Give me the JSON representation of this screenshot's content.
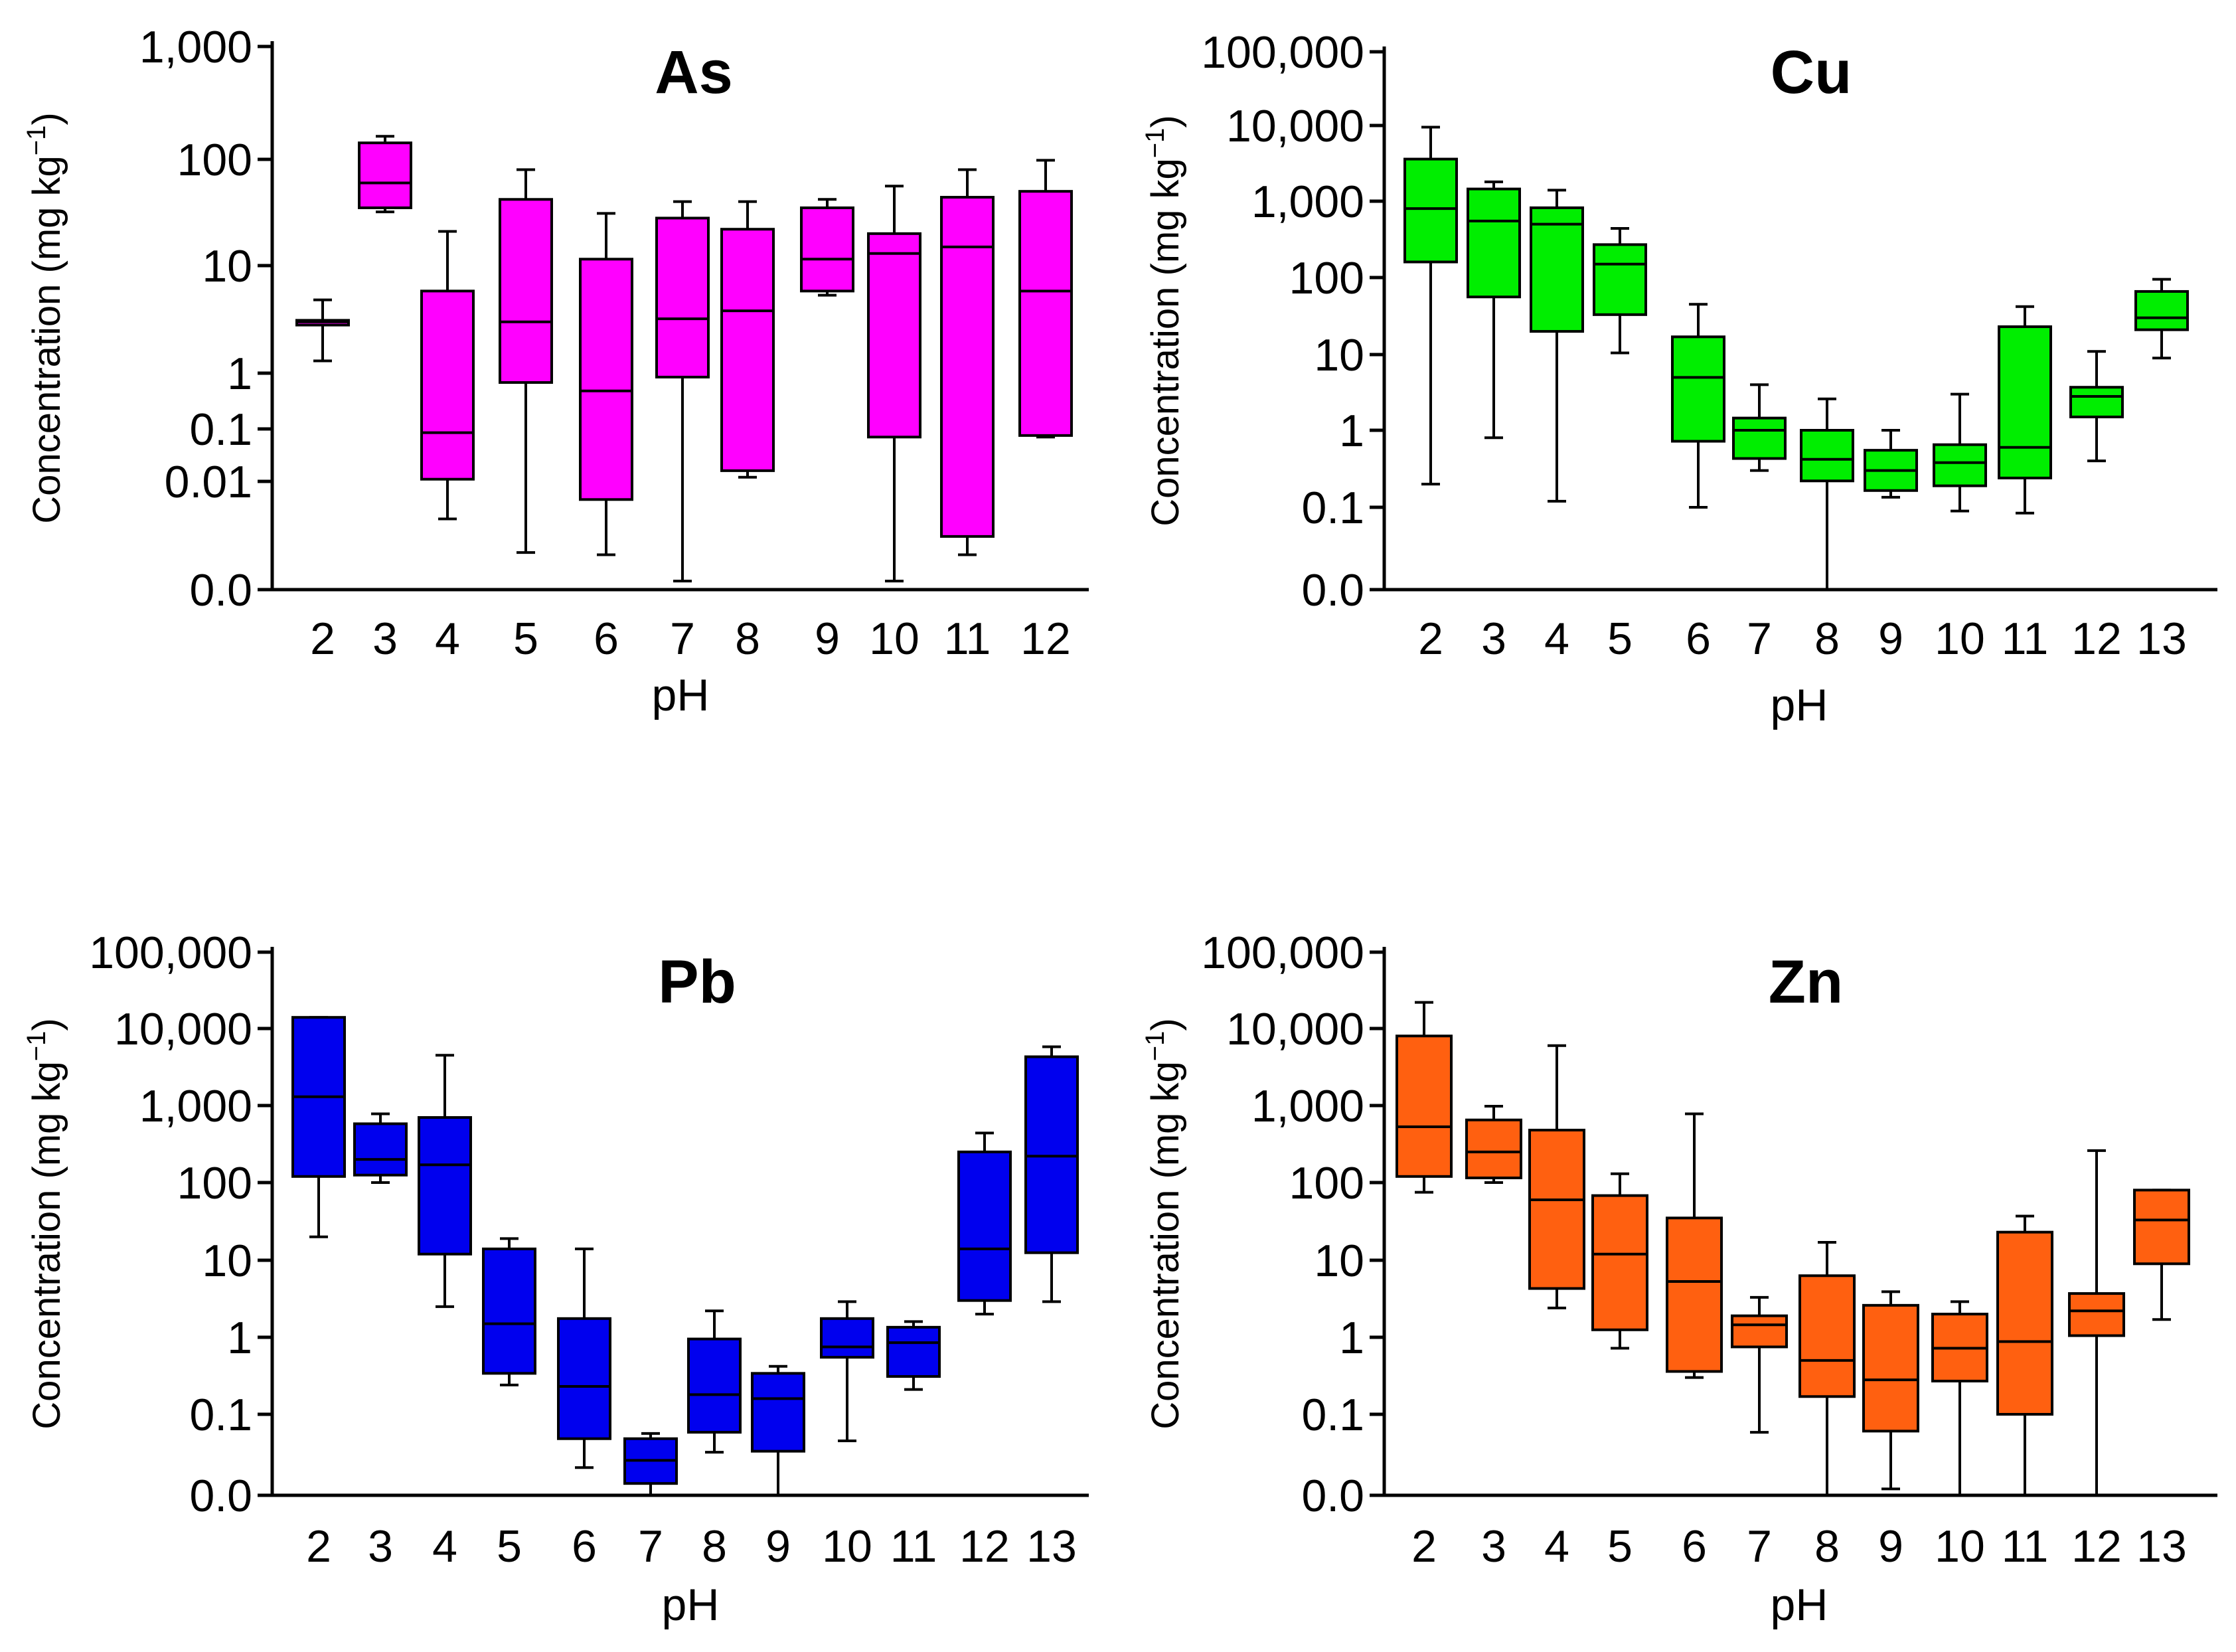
{
  "figure": {
    "ylabel_main": "Concentration (mg kg",
    "ylabel_sup": "−1",
    "ylabel_close": ")",
    "xlabel": "pH"
  },
  "chart_data": [
    {
      "type": "box",
      "title": "As",
      "xlabel": "pH",
      "ylabel": "Concentration (mg kg−1)",
      "color": "#ff00ff",
      "yticks": [
        {
          "label": "1,000",
          "value": 1000
        },
        {
          "label": "100",
          "value": 100
        },
        {
          "label": "10",
          "value": 10
        },
        {
          "label": "1",
          "value": 1
        },
        {
          "label": "0.1",
          "value": 0.1
        },
        {
          "label": "0.01",
          "value": 0.01
        },
        {
          "label": "0.0",
          "value": 0.0
        }
      ],
      "categories": [
        "2",
        "3",
        "4",
        "5",
        "6",
        "7",
        "8",
        "9",
        "10",
        "11",
        "12"
      ],
      "boxes": [
        {
          "min": 1.3,
          "q1": 2.8,
          "median": 3.0,
          "q3": 3.1,
          "max": 4.8
        },
        {
          "min": 32,
          "q1": 35,
          "median": 60,
          "q3": 140,
          "max": 160
        },
        {
          "min": 0.0045,
          "q1": 0.011,
          "median": 0.085,
          "q3": 5.8,
          "max": 21
        },
        {
          "min": 0.0022,
          "q1": 0.68,
          "median": 3.0,
          "q3": 42,
          "max": 80
        },
        {
          "min": 0.0021,
          "q1": 0.0068,
          "median": 0.48,
          "q3": 11.5,
          "max": 31
        },
        {
          "min": 0.0012,
          "q1": 0.85,
          "median": 3.2,
          "q3": 28,
          "max": 40
        },
        {
          "min": 0.012,
          "q1": 0.016,
          "median": 3.8,
          "q3": 22,
          "max": 40
        },
        {
          "min": 5.3,
          "q1": 5.8,
          "median": 11.5,
          "q3": 35,
          "max": 42
        },
        {
          "min": 0.0012,
          "q1": 0.07,
          "median": 13,
          "q3": 20,
          "max": 56
        },
        {
          "min": 0.0021,
          "q1": 0.0031,
          "median": 15,
          "q3": 44,
          "max": 80
        },
        {
          "min": 0.07,
          "q1": 0.075,
          "median": 5.8,
          "q3": 50,
          "max": 98
        }
      ]
    },
    {
      "type": "box",
      "title": "Cu",
      "xlabel": "pH",
      "ylabel": "Concentration (mg kg−1)",
      "color": "#00ee00",
      "yticks": [
        {
          "label": "100,000",
          "value": 100000
        },
        {
          "label": "10,000",
          "value": 10000
        },
        {
          "label": "1,000",
          "value": 1000
        },
        {
          "label": "100",
          "value": 100
        },
        {
          "label": "10",
          "value": 10
        },
        {
          "label": "1",
          "value": 1
        },
        {
          "label": "0.1",
          "value": 0.1
        },
        {
          "label": "0.0",
          "value": 0.0
        }
      ],
      "categories": [
        "2",
        "3",
        "4",
        "5",
        "6",
        "7",
        "8",
        "9",
        "10",
        "11",
        "12",
        "13"
      ],
      "boxes": [
        {
          "min": 0.2,
          "q1": 160,
          "median": 800,
          "q3": 3600,
          "max": 9500
        },
        {
          "min": 0.8,
          "q1": 56,
          "median": 550,
          "q3": 1450,
          "max": 1800
        },
        {
          "min": 0.12,
          "q1": 20,
          "median": 500,
          "q3": 820,
          "max": 1400
        },
        {
          "min": 10.5,
          "q1": 33,
          "median": 150,
          "q3": 270,
          "max": 440
        },
        {
          "min": 0.1,
          "q1": 0.72,
          "median": 5.0,
          "q3": 17,
          "max": 45
        },
        {
          "min": 0.3,
          "q1": 0.43,
          "median": 1.0,
          "q3": 1.45,
          "max": 4.0
        },
        {
          "min": 0.0,
          "q1": 0.22,
          "median": 0.42,
          "q3": 1.0,
          "max": 2.6
        },
        {
          "min": 0.135,
          "q1": 0.165,
          "median": 0.3,
          "q3": 0.55,
          "max": 1.0
        },
        {
          "min": 0.09,
          "q1": 0.19,
          "median": 0.38,
          "q3": 0.65,
          "max": 3.0
        },
        {
          "min": 0.085,
          "q1": 0.24,
          "median": 0.6,
          "q3": 23,
          "max": 42
        },
        {
          "min": 0.4,
          "q1": 1.5,
          "median": 2.8,
          "q3": 3.7,
          "max": 11
        },
        {
          "min": 9,
          "q1": 21,
          "median": 30,
          "q3": 66,
          "max": 95
        }
      ]
    },
    {
      "type": "box",
      "title": "Pb",
      "xlabel": "pH",
      "ylabel": "Concentration (mg kg−1)",
      "color": "#0000ee",
      "yticks": [
        {
          "label": "100,000",
          "value": 100000
        },
        {
          "label": "10,000",
          "value": 10000
        },
        {
          "label": "1,000",
          "value": 1000
        },
        {
          "label": "100",
          "value": 100
        },
        {
          "label": "10",
          "value": 10
        },
        {
          "label": "1",
          "value": 1
        },
        {
          "label": "0.1",
          "value": 0.1
        },
        {
          "label": "0.0",
          "value": 0.0
        }
      ],
      "categories": [
        "2",
        "3",
        "4",
        "5",
        "6",
        "7",
        "8",
        "9",
        "10",
        "11",
        "12",
        "13"
      ],
      "boxes": [
        {
          "min": 20,
          "q1": 120,
          "median": 1300,
          "q3": 14000,
          "max": 14000
        },
        {
          "min": 100,
          "q1": 125,
          "median": 200,
          "q3": 580,
          "max": 780
        },
        {
          "min": 2.5,
          "q1": 12,
          "median": 170,
          "q3": 700,
          "max": 4500
        },
        {
          "min": 0.24,
          "q1": 0.34,
          "median": 1.5,
          "q3": 14,
          "max": 19
        },
        {
          "min": 0.022,
          "q1": 0.05,
          "median": 0.23,
          "q3": 1.75,
          "max": 14
        },
        {
          "min": 0.009,
          "q1": 0.014,
          "median": 0.027,
          "q3": 0.05,
          "max": 0.058
        },
        {
          "min": 0.034,
          "q1": 0.06,
          "median": 0.18,
          "q3": 0.95,
          "max": 2.2
        },
        {
          "min": 0.009,
          "q1": 0.035,
          "median": 0.16,
          "q3": 0.34,
          "max": 0.42
        },
        {
          "min": 0.047,
          "q1": 0.55,
          "median": 0.75,
          "q3": 1.75,
          "max": 2.9
        },
        {
          "min": 0.21,
          "q1": 0.31,
          "median": 0.85,
          "q3": 1.35,
          "max": 1.6
        },
        {
          "min": 2.0,
          "q1": 3.0,
          "median": 14,
          "q3": 250,
          "max": 440
        },
        {
          "min": 2.9,
          "q1": 12.5,
          "median": 220,
          "q3": 4300,
          "max": 5800
        }
      ]
    },
    {
      "type": "box",
      "title": "Zn",
      "xlabel": "pH",
      "ylabel": "Concentration (mg kg−1)",
      "color": "#ff6010",
      "yticks": [
        {
          "label": "100,000",
          "value": 100000
        },
        {
          "label": "10,000",
          "value": 10000
        },
        {
          "label": "1,000",
          "value": 1000
        },
        {
          "label": "100",
          "value": 100
        },
        {
          "label": "10",
          "value": 10
        },
        {
          "label": "1",
          "value": 1
        },
        {
          "label": "0.1",
          "value": 0.1
        },
        {
          "label": "0.0",
          "value": 0.0
        }
      ],
      "categories": [
        "2",
        "3",
        "4",
        "5",
        "6",
        "7",
        "8",
        "9",
        "10",
        "11",
        "12",
        "13"
      ],
      "boxes": [
        {
          "min": 75,
          "q1": 120,
          "median": 530,
          "q3": 8000,
          "max": 22000
        },
        {
          "min": 100,
          "q1": 115,
          "median": 250,
          "q3": 650,
          "max": 980
        },
        {
          "min": 2.4,
          "q1": 4.3,
          "median": 60,
          "q3": 480,
          "max": 6000
        },
        {
          "min": 0.72,
          "q1": 1.25,
          "median": 12,
          "q3": 68,
          "max": 130
        },
        {
          "min": 0.3,
          "q1": 0.36,
          "median": 5.3,
          "q3": 35,
          "max": 780
        },
        {
          "min": 0.06,
          "q1": 0.75,
          "median": 1.45,
          "q3": 1.9,
          "max": 3.3
        },
        {
          "min": 0.0,
          "q1": 0.17,
          "median": 0.5,
          "q3": 6.3,
          "max": 17
        },
        {
          "min": 0.012,
          "q1": 0.062,
          "median": 0.28,
          "q3": 2.6,
          "max": 3.9
        },
        {
          "min": 0.009,
          "q1": 0.27,
          "median": 0.72,
          "q3": 2.0,
          "max": 2.9
        },
        {
          "min": 0.009,
          "q1": 0.1,
          "median": 0.88,
          "q3": 23,
          "max": 37
        },
        {
          "min": 0.0,
          "q1": 1.05,
          "median": 2.2,
          "q3": 3.7,
          "max": 260
        },
        {
          "min": 1.7,
          "q1": 9,
          "median": 33,
          "q3": 80,
          "max": 80
        }
      ]
    }
  ]
}
